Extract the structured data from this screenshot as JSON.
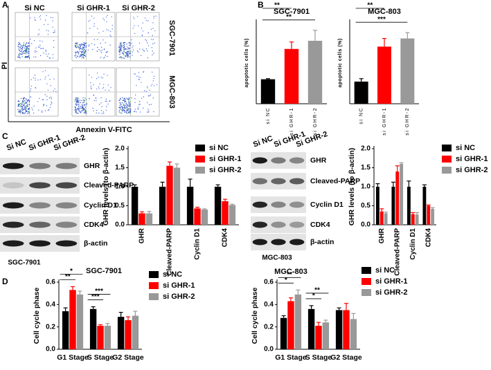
{
  "panels": [
    "A",
    "B",
    "C",
    "D"
  ],
  "flow": {
    "columns": [
      "Si NC",
      "Si GHR-1",
      "Si GHR-2"
    ],
    "rows": [
      "SGC-7901",
      "MGC-803"
    ],
    "x_label": "Annexin V-FITC",
    "y_label": "PI"
  },
  "blots": [
    {
      "cell_line": "SGC-7901",
      "lanes": [
        "Si NC",
        "Si GHR-1",
        "Si GHR-2"
      ],
      "proteins": [
        "GHR",
        "Cleaved-PARP",
        "Cyclin D1",
        "CDK4",
        "β-actin"
      ]
    },
    {
      "cell_line": "MGC-803",
      "lanes": [
        "Si NC",
        "Si GHR-1",
        "Si GHR-2"
      ],
      "proteins": [
        "GHR",
        "Cleaved-PARP",
        "Cyclin D1",
        "CDK4",
        "β-actin"
      ]
    }
  ],
  "chart_data": [
    {
      "type": "bar",
      "title": "SGC-7901",
      "y_label": "apoptotic cells (%)",
      "categories": [
        "si NC",
        "si GHR-1",
        "si GHR-2"
      ],
      "values": [
        2.1,
        4.7,
        5.4
      ],
      "errors": [
        0.05,
        0.6,
        0.9
      ],
      "colors": [
        "#000000",
        "#ff0000",
        "#999999"
      ],
      "ylim": [
        0,
        7
      ],
      "significance": [
        {
          "label": "**",
          "from": 0,
          "to": 1
        },
        {
          "label": "**",
          "from": 0,
          "to": 2
        }
      ]
    },
    {
      "type": "bar",
      "title": "MGC-803",
      "y_label": "apoptotic cells (%)",
      "categories": [
        "si NC",
        "si GHR-1",
        "si GHR-2"
      ],
      "values": [
        1.9,
        4.9,
        5.6
      ],
      "errors": [
        0.25,
        0.7,
        0.5
      ],
      "colors": [
        "#000000",
        "#ff0000",
        "#999999"
      ],
      "ylim": [
        0,
        7
      ],
      "significance": [
        {
          "label": "**",
          "from": 0,
          "to": 1
        },
        {
          "label": "***",
          "from": 0,
          "to": 2
        }
      ]
    },
    {
      "type": "grouped_bar",
      "y_label": "GHR levels (to β-actin)",
      "categories": [
        "GHR",
        "Cleaved-PARP",
        "Cyclin D1",
        "CDK4"
      ],
      "ylim": [
        0,
        2
      ],
      "yticks": [
        {
          "value": 0,
          "label": "0.0"
        },
        0.5,
        {
          "value": 1,
          "label": "1.0"
        },
        1.5,
        {
          "value": 2,
          "label": "2.0"
        }
      ],
      "series": [
        {
          "name": "si NC",
          "color": "#000000",
          "values": [
            1,
            1,
            1,
            1
          ],
          "errors": [
            0.05,
            0.12,
            0.2,
            0.05
          ]
        },
        {
          "name": "si GHR-1",
          "color": "#ff0000",
          "values": [
            0.3,
            1.55,
            0.43,
            0.62
          ],
          "errors": [
            0.04,
            0.1,
            0.03,
            0.05
          ]
        },
        {
          "name": "si GHR-2",
          "color": "#999999",
          "values": [
            0.3,
            1.5,
            0.4,
            0.52
          ],
          "errors": [
            0.05,
            0.1,
            0.02,
            0.02
          ]
        }
      ]
    },
    {
      "type": "grouped_bar",
      "y_label": "GHR levels (to β-actin)",
      "categories": [
        "GHR",
        "Cleaved-PARP",
        "Cyclin D1",
        "CDK4"
      ],
      "ylim": [
        0,
        2
      ],
      "yticks": [
        {
          "value": 0,
          "label": "0.0"
        },
        0.5,
        {
          "value": 1,
          "label": "1.0"
        },
        1.5,
        {
          "value": 2,
          "label": "2.0"
        }
      ],
      "series": [
        {
          "name": "si NC",
          "color": "#000000",
          "values": [
            1,
            1,
            1,
            1
          ],
          "errors": [
            0.08,
            0.12,
            0.15,
            0.05
          ]
        },
        {
          "name": "si GHR-1",
          "color": "#ff0000",
          "values": [
            0.35,
            1.4,
            0.28,
            0.5
          ],
          "errors": [
            0.07,
            0.15,
            0.04,
            0.02
          ]
        },
        {
          "name": "si GHR-2",
          "color": "#999999",
          "values": [
            0.3,
            1.6,
            0.27,
            0.42
          ],
          "errors": [
            0.03,
            0.03,
            0.05,
            0.03
          ]
        }
      ]
    },
    {
      "type": "grouped_bar",
      "title": "SGC-7901",
      "y_label": "Cell cycle phase",
      "categories": [
        "G1 Stage",
        "S Stage",
        "G2 Stage"
      ],
      "ylim": [
        0,
        0.6
      ],
      "yticks": [
        {
          "value": 0,
          "label": "0.0"
        },
        0.2,
        0.4,
        0.6
      ],
      "series": [
        {
          "name": "si NC",
          "color": "#000000",
          "values": [
            0.34,
            0.36,
            0.29
          ],
          "errors": [
            0.03,
            0.02,
            0.04
          ]
        },
        {
          "name": "si GHR-1",
          "color": "#ff0000",
          "values": [
            0.53,
            0.21,
            0.26
          ],
          "errors": [
            0.03,
            0.01,
            0.03
          ]
        },
        {
          "name": "si GHR-2",
          "color": "#999999",
          "values": [
            0.49,
            0.21,
            0.3
          ],
          "errors": [
            0.03,
            0.02,
            0.04
          ]
        }
      ],
      "significance": [
        {
          "label": "**",
          "category": 0,
          "from": 0,
          "to": 1
        },
        {
          "label": "*",
          "category": 0,
          "from": 0,
          "to": 2
        },
        {
          "label": "***",
          "category": 1,
          "from": 0,
          "to": 1
        },
        {
          "label": "***",
          "category": 1,
          "from": 0,
          "to": 2
        }
      ]
    },
    {
      "type": "grouped_bar",
      "title": "MGC-803",
      "y_label": "Cell cycle phase",
      "categories": [
        "G1 Stage",
        "S Stage",
        "G2 Stage"
      ],
      "ylim": [
        0,
        0.6
      ],
      "yticks": [
        {
          "value": 0,
          "label": "0.0"
        },
        0.2,
        0.4,
        0.6
      ],
      "series": [
        {
          "name": "si NC",
          "color": "#000000",
          "values": [
            0.28,
            0.36,
            0.35
          ],
          "errors": [
            0.02,
            0.03,
            0.02
          ]
        },
        {
          "name": "si GHR-1",
          "color": "#ff0000",
          "values": [
            0.43,
            0.21,
            0.35
          ],
          "errors": [
            0.03,
            0.03,
            0.06
          ]
        },
        {
          "name": "si GHR-2",
          "color": "#999999",
          "values": [
            0.49,
            0.24,
            0.27
          ],
          "errors": [
            0.04,
            0.02,
            0.05
          ]
        }
      ],
      "significance": [
        {
          "label": "*",
          "category": 0,
          "from": 0,
          "to": 1
        },
        {
          "label": "**",
          "category": 0,
          "from": 0,
          "to": 2
        },
        {
          "label": "*",
          "category": 1,
          "from": 0,
          "to": 1
        },
        {
          "label": "**",
          "category": 1,
          "from": 0,
          "to": 2
        }
      ]
    }
  ]
}
